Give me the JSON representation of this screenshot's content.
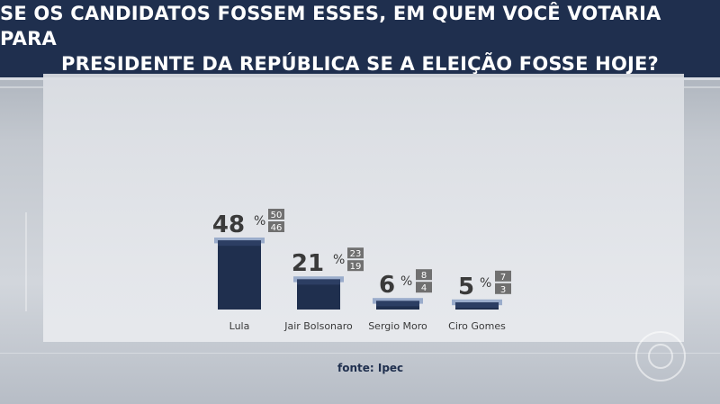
{
  "header": {
    "line1": "SE OS CANDIDATOS FOSSEM ESSES, EM QUEM VOCÊ VOTARIA PARA",
    "line2": "PRESIDENTE DA REPÚBLICA SE A ELEIÇÃO FOSSE HOJE?"
  },
  "source": "fonte: Ipec",
  "colors": {
    "bar": "#1f2f4e",
    "bar_top": "#2c3e63",
    "margin_band": "#9aaccb",
    "range_box": "#707070",
    "text": "#3a3a3a"
  },
  "chart_data": {
    "type": "bar",
    "title": "SE OS CANDIDATOS FOSSEM ESSES, EM QUEM VOCÊ VOTARIA PARA PRESIDENTE DA REPÚBLICA SE A ELEIÇÃO FOSSE HOJE?",
    "categories": [
      "Lula",
      "Jair Bolsonaro",
      "Sergio Moro",
      "Ciro Gomes"
    ],
    "values": [
      48,
      21,
      6,
      5
    ],
    "upper": [
      50,
      23,
      8,
      7
    ],
    "lower": [
      46,
      19,
      4,
      3
    ],
    "unit": "%",
    "ylim": [
      0,
      55
    ],
    "grid": false,
    "legend": "none"
  }
}
